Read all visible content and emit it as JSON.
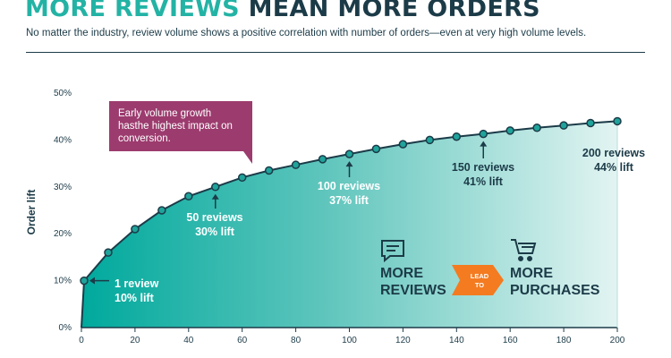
{
  "header": {
    "title_accent": "MORE REVIEWS",
    "title_main": "MEAN MORE ORDERS",
    "subtitle": "No matter the industry, review volume shows a positive correlation with number of orders—even at very high volume levels."
  },
  "callout": {
    "text": "Early volume growth hasthe highest impact on conversion."
  },
  "legend": {
    "left_label_line1": "MORE",
    "left_label_line2": "REVIEWS",
    "arrow_line1": "LEAD",
    "arrow_line2": "TO",
    "right_label_line1": "MORE",
    "right_label_line2": "PURCHASES",
    "left_icon": "review-chat-icon",
    "right_icon": "shopping-cart-icon"
  },
  "colors": {
    "teal": "#00a99d",
    "dark_navy": "#1c3b48",
    "title_teal": "#23b3a5",
    "callout_purple": "#9c3b6e",
    "arrow_orange": "#f47b20"
  },
  "chart_data": {
    "type": "area",
    "title": "MORE REVIEWS MEAN MORE ORDERS",
    "xlabel": "",
    "ylabel": "Order lift",
    "xlim": [
      0,
      200
    ],
    "ylim": [
      0,
      50
    ],
    "x_ticks": [
      "0",
      "20",
      "40",
      "60",
      "80",
      "100",
      "120",
      "140",
      "160",
      "180",
      "200"
    ],
    "y_ticks": [
      "0%",
      "10%",
      "20%",
      "30%",
      "40%",
      "50%"
    ],
    "grid": false,
    "series": [
      {
        "x": [
          1,
          10,
          20,
          30,
          40,
          50,
          60,
          70,
          80,
          90,
          100,
          110,
          120,
          130,
          140,
          150,
          160,
          170,
          180,
          190,
          200
        ],
        "y": [
          10,
          16,
          21,
          25,
          28,
          30,
          32,
          33.5,
          34.7,
          35.9,
          37,
          38.1,
          39.1,
          40,
          40.7,
          41.3,
          42,
          42.6,
          43.1,
          43.6,
          44
        ]
      }
    ],
    "annotations": [
      {
        "x": 1,
        "y": 10,
        "line1": "1 review",
        "line2": "10% lift"
      },
      {
        "x": 50,
        "y": 30,
        "line1": "50 reviews",
        "line2": "30% lift"
      },
      {
        "x": 100,
        "y": 37,
        "line1": "100 reviews",
        "line2": "37% lift"
      },
      {
        "x": 150,
        "y": 41.3,
        "line1": "150 reviews",
        "line2": "41% lift"
      },
      {
        "x": 200,
        "y": 44,
        "line1": "200 reviews",
        "line2": "44% lift"
      }
    ]
  }
}
